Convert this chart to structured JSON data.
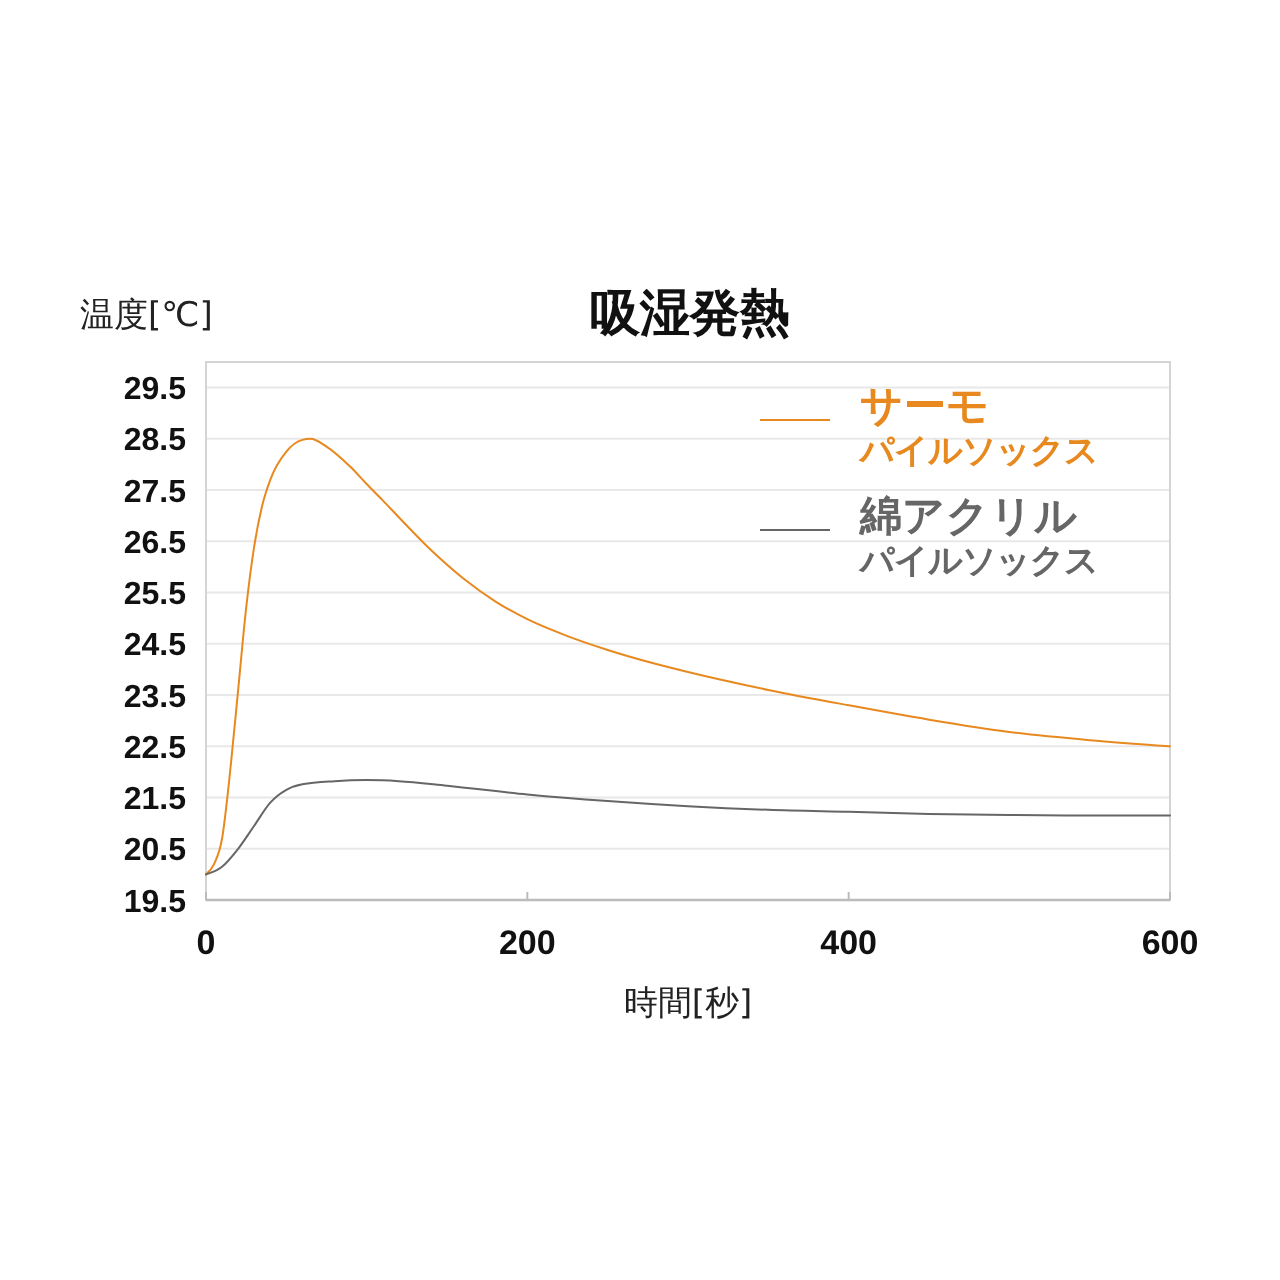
{
  "chart_data": {
    "type": "line",
    "title": "吸湿発熱",
    "ylabel": "温度[℃]",
    "xlabel": "時間[秒]",
    "xlim": [
      0,
      600
    ],
    "xticks": [
      0,
      200,
      400,
      600
    ],
    "ylim": [
      19.5,
      30
    ],
    "yticks": [
      19.5,
      20.5,
      21.5,
      22.5,
      23.5,
      24.5,
      25.5,
      26.5,
      27.5,
      28.5,
      29.5
    ],
    "grid": "y",
    "legend": "top right",
    "series": [
      {
        "name": "サーモパイルソックス",
        "color": "#e8891f",
        "x": [
          0,
          5,
          10,
          15,
          20,
          25,
          30,
          35,
          40,
          50,
          60,
          65,
          75,
          90,
          100,
          110,
          120,
          140,
          160,
          180,
          200,
          225,
          250,
          275,
          300,
          350,
          400,
          450,
          500,
          550,
          600
        ],
        "values": [
          20.0,
          20.2,
          20.7,
          22.0,
          23.6,
          25.2,
          26.4,
          27.2,
          27.7,
          28.25,
          28.48,
          28.5,
          28.35,
          27.95,
          27.62,
          27.3,
          26.97,
          26.33,
          25.78,
          25.33,
          24.98,
          24.65,
          24.38,
          24.15,
          23.95,
          23.6,
          23.3,
          23.02,
          22.78,
          22.62,
          22.5
        ]
      },
      {
        "name": "綿アクリルパイルソックス",
        "color": "#666666",
        "x": [
          0,
          10,
          20,
          30,
          40,
          50,
          60,
          80,
          100,
          120,
          150,
          200,
          250,
          300,
          350,
          400,
          450,
          500,
          550,
          600
        ],
        "values": [
          20.0,
          20.15,
          20.5,
          20.95,
          21.4,
          21.65,
          21.76,
          21.82,
          21.84,
          21.82,
          21.73,
          21.56,
          21.43,
          21.33,
          21.26,
          21.22,
          21.18,
          21.16,
          21.15,
          21.15
        ]
      }
    ]
  }
}
